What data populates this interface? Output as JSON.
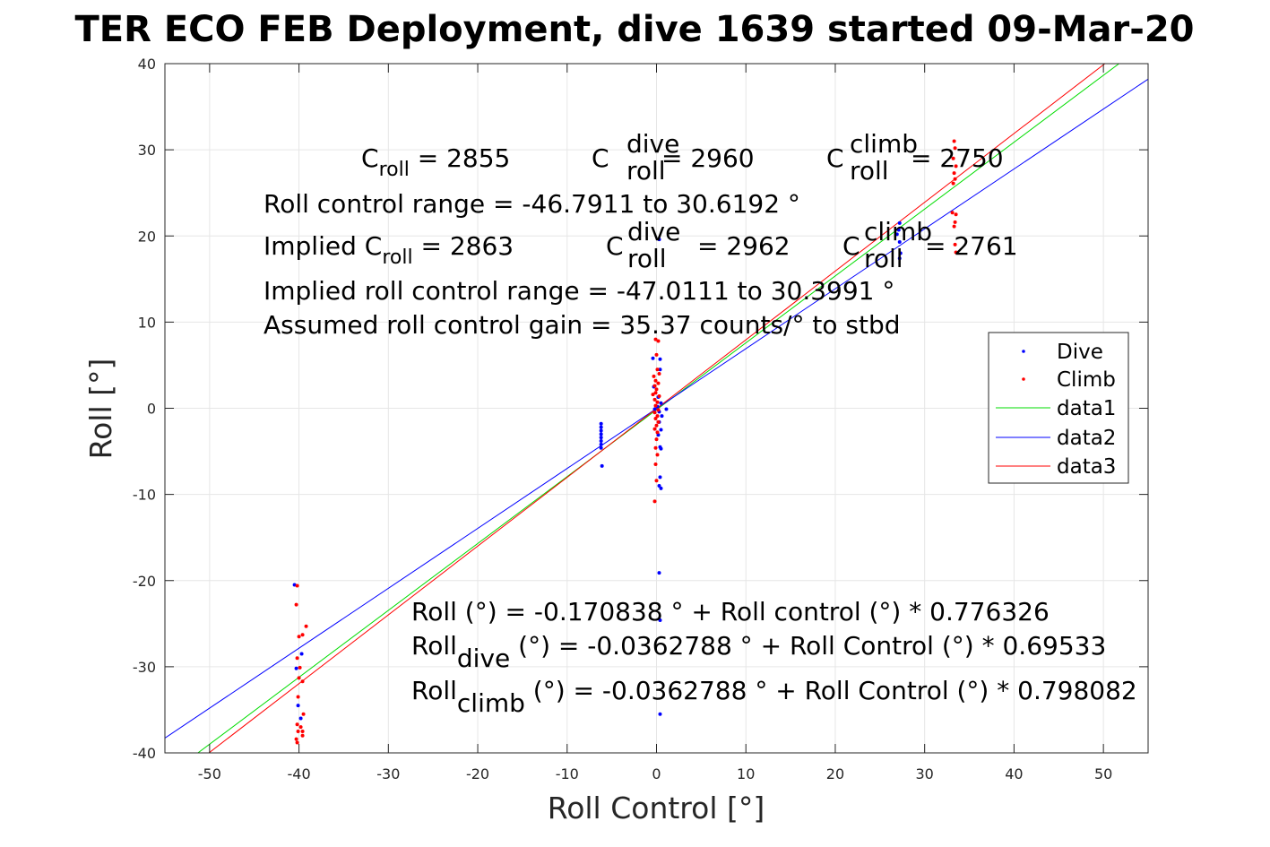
{
  "chart_data": {
    "type": "scatter",
    "title": "TER ECO FEB Deployment, dive 1639 started 09-Mar-20",
    "xlabel": "Roll Control [°]",
    "ylabel": "Roll [°]",
    "xlim": [
      -55,
      55
    ],
    "ylim": [
      -40,
      40
    ],
    "xticks": [
      -50,
      -40,
      -30,
      -20,
      -10,
      0,
      10,
      20,
      30,
      40,
      50
    ],
    "yticks": [
      -40,
      -30,
      -20,
      -10,
      0,
      10,
      20,
      30,
      40
    ],
    "grid": true,
    "legend_position": "top-right",
    "legend": [
      {
        "label": "Dive",
        "kind": "marker",
        "color": "#0000ff"
      },
      {
        "label": "Climb",
        "kind": "marker",
        "color": "#ff0000"
      },
      {
        "label": "data1",
        "kind": "line",
        "color": "#00dd00"
      },
      {
        "label": "data2",
        "kind": "line",
        "color": "#0000ff"
      },
      {
        "label": "data3",
        "kind": "line",
        "color": "#ff0000"
      }
    ],
    "series": [
      {
        "name": "Dive",
        "color": "#0000ff",
        "points": [
          [
            -40.5,
            -20.5
          ],
          [
            -40.3,
            -30.2
          ],
          [
            -40.1,
            -34.5
          ],
          [
            -39.8,
            -36.0
          ],
          [
            -39.7,
            -28.5
          ],
          [
            -6.2,
            -1.8
          ],
          [
            -6.2,
            -2.2
          ],
          [
            -6.2,
            -2.6
          ],
          [
            -6.2,
            -3.0
          ],
          [
            -6.2,
            -3.4
          ],
          [
            -6.2,
            -3.8
          ],
          [
            -6.2,
            -4.2
          ],
          [
            -6.2,
            -4.6
          ],
          [
            -6.1,
            -6.7
          ],
          [
            -0.4,
            5.8
          ],
          [
            0.4,
            5.7
          ],
          [
            0.4,
            4.5
          ],
          [
            -0.3,
            2.5
          ],
          [
            0.2,
            1.3
          ],
          [
            0.5,
            0.6
          ],
          [
            0.1,
            0.2
          ],
          [
            -0.2,
            -0.1
          ],
          [
            0.3,
            -0.4
          ],
          [
            0.6,
            -0.9
          ],
          [
            1.1,
            -0.1
          ],
          [
            0.3,
            -1.6
          ],
          [
            0.5,
            -2.5
          ],
          [
            0.2,
            -3.1
          ],
          [
            0.4,
            -4.5
          ],
          [
            0.5,
            -4.7
          ],
          [
            0.4,
            -8.0
          ],
          [
            0.3,
            -9.0
          ],
          [
            0.5,
            -9.3
          ],
          [
            0.3,
            -19.1
          ],
          [
            0.4,
            -24.6
          ],
          [
            0.4,
            -35.5
          ],
          [
            0.3,
            19.6
          ],
          [
            27.2,
            21.5
          ],
          [
            27.1,
            20.7
          ],
          [
            27.2,
            19.3
          ],
          [
            27.3,
            18.0
          ],
          [
            27.2,
            17.4
          ],
          [
            26.9,
            20.2
          ]
        ]
      },
      {
        "name": "Climb",
        "color": "#ff0000",
        "points": [
          [
            -40.2,
            -20.6
          ],
          [
            -40.3,
            -22.8
          ],
          [
            -40.0,
            -26.5
          ],
          [
            -40.2,
            -29.0
          ],
          [
            -39.9,
            -30.1
          ],
          [
            -40.0,
            -31.3
          ],
          [
            -40.1,
            -33.5
          ],
          [
            -40.2,
            -36.7
          ],
          [
            -40.1,
            -37.5
          ],
          [
            -40.3,
            -38.4
          ],
          [
            -40.2,
            -38.8
          ],
          [
            -39.8,
            -37.0
          ],
          [
            -39.6,
            -37.5
          ],
          [
            -39.6,
            -38.0
          ],
          [
            -39.6,
            -31.7
          ],
          [
            -39.2,
            -25.3
          ],
          [
            -39.6,
            -26.3
          ],
          [
            -39.5,
            -35.5
          ],
          [
            -0.1,
            8.0
          ],
          [
            0.2,
            7.8
          ],
          [
            0.0,
            6.2
          ],
          [
            0.1,
            4.5
          ],
          [
            0.3,
            4.0
          ],
          [
            -0.3,
            3.7
          ],
          [
            -0.1,
            3.2
          ],
          [
            0.2,
            2.9
          ],
          [
            -0.2,
            2.6
          ],
          [
            0.0,
            2.2
          ],
          [
            -0.1,
            1.8
          ],
          [
            -0.4,
            1.6
          ],
          [
            0.3,
            1.4
          ],
          [
            -0.2,
            1.0
          ],
          [
            0.1,
            0.7
          ],
          [
            -0.1,
            0.3
          ],
          [
            0.2,
            -0.2
          ],
          [
            -0.2,
            -0.5
          ],
          [
            0.1,
            -0.9
          ],
          [
            -0.1,
            -1.2
          ],
          [
            0.2,
            -1.6
          ],
          [
            0.0,
            -2.0
          ],
          [
            -0.2,
            -2.4
          ],
          [
            0.1,
            -2.8
          ],
          [
            0.0,
            -3.6
          ],
          [
            -0.1,
            -4.6
          ],
          [
            0.1,
            -5.4
          ],
          [
            -0.1,
            -6.5
          ],
          [
            0.0,
            -8.4
          ],
          [
            -0.2,
            -10.8
          ],
          [
            33.3,
            31.0
          ],
          [
            33.4,
            30.2
          ],
          [
            33.2,
            29.0
          ],
          [
            33.5,
            28.1
          ],
          [
            33.3,
            27.3
          ],
          [
            33.4,
            26.6
          ],
          [
            33.2,
            26.1
          ],
          [
            33.1,
            22.7
          ],
          [
            33.5,
            22.5
          ],
          [
            33.4,
            21.6
          ],
          [
            33.3,
            21.1
          ],
          [
            33.4,
            19.0
          ],
          [
            33.5,
            18.1
          ]
        ]
      }
    ],
    "lines": [
      {
        "name": "data1",
        "color": "#00dd00",
        "slope": 0.776326,
        "intercept": -0.170838
      },
      {
        "name": "data2",
        "color": "#0000ff",
        "slope": 0.69533,
        "intercept": -0.0362788
      },
      {
        "name": "data3",
        "color": "#ff0000",
        "slope": 0.798082,
        "intercept": -0.0362788
      }
    ]
  },
  "annotations": {
    "line1": {
      "a1": "C",
      "a1_sub": "roll",
      "a1_val": " = 2855",
      "a2": "C",
      "a2_sup": "dive",
      "a2_sub": "roll",
      "a2_val": " = 2960",
      "a3": "C",
      "a3_sup": "climb",
      "a3_sub": "roll",
      "a3_val": " = 2750"
    },
    "line2": "Roll control range = -46.7911 to 30.6192 °",
    "line3": {
      "prefix": "Implied C",
      "b1_sub": "roll",
      "b1_val": " = 2863",
      "b2": "C",
      "b2_sup": "dive",
      "b2_sub": "roll",
      "b2_val": " = 2962",
      "b3": "C",
      "b3_sup": "climb",
      "b3_sub": "roll",
      "b3_val": " = 2761"
    },
    "line4": "Implied roll control range = -47.0111 to 30.3991 °",
    "line5": "Assumed roll control gain = 35.37 counts/° to stbd",
    "fit1": "Roll (°) = -0.170838 ° + Roll control (°) * 0.776326",
    "fit2": {
      "pre": "Roll",
      "sub": "dive",
      "post": " (°) = -0.0362788 ° + Roll Control (°) * 0.69533"
    },
    "fit3": {
      "pre": "Roll",
      "sub": "climb",
      "post": " (°) = -0.0362788 ° + Roll Control (°) * 0.798082"
    }
  }
}
